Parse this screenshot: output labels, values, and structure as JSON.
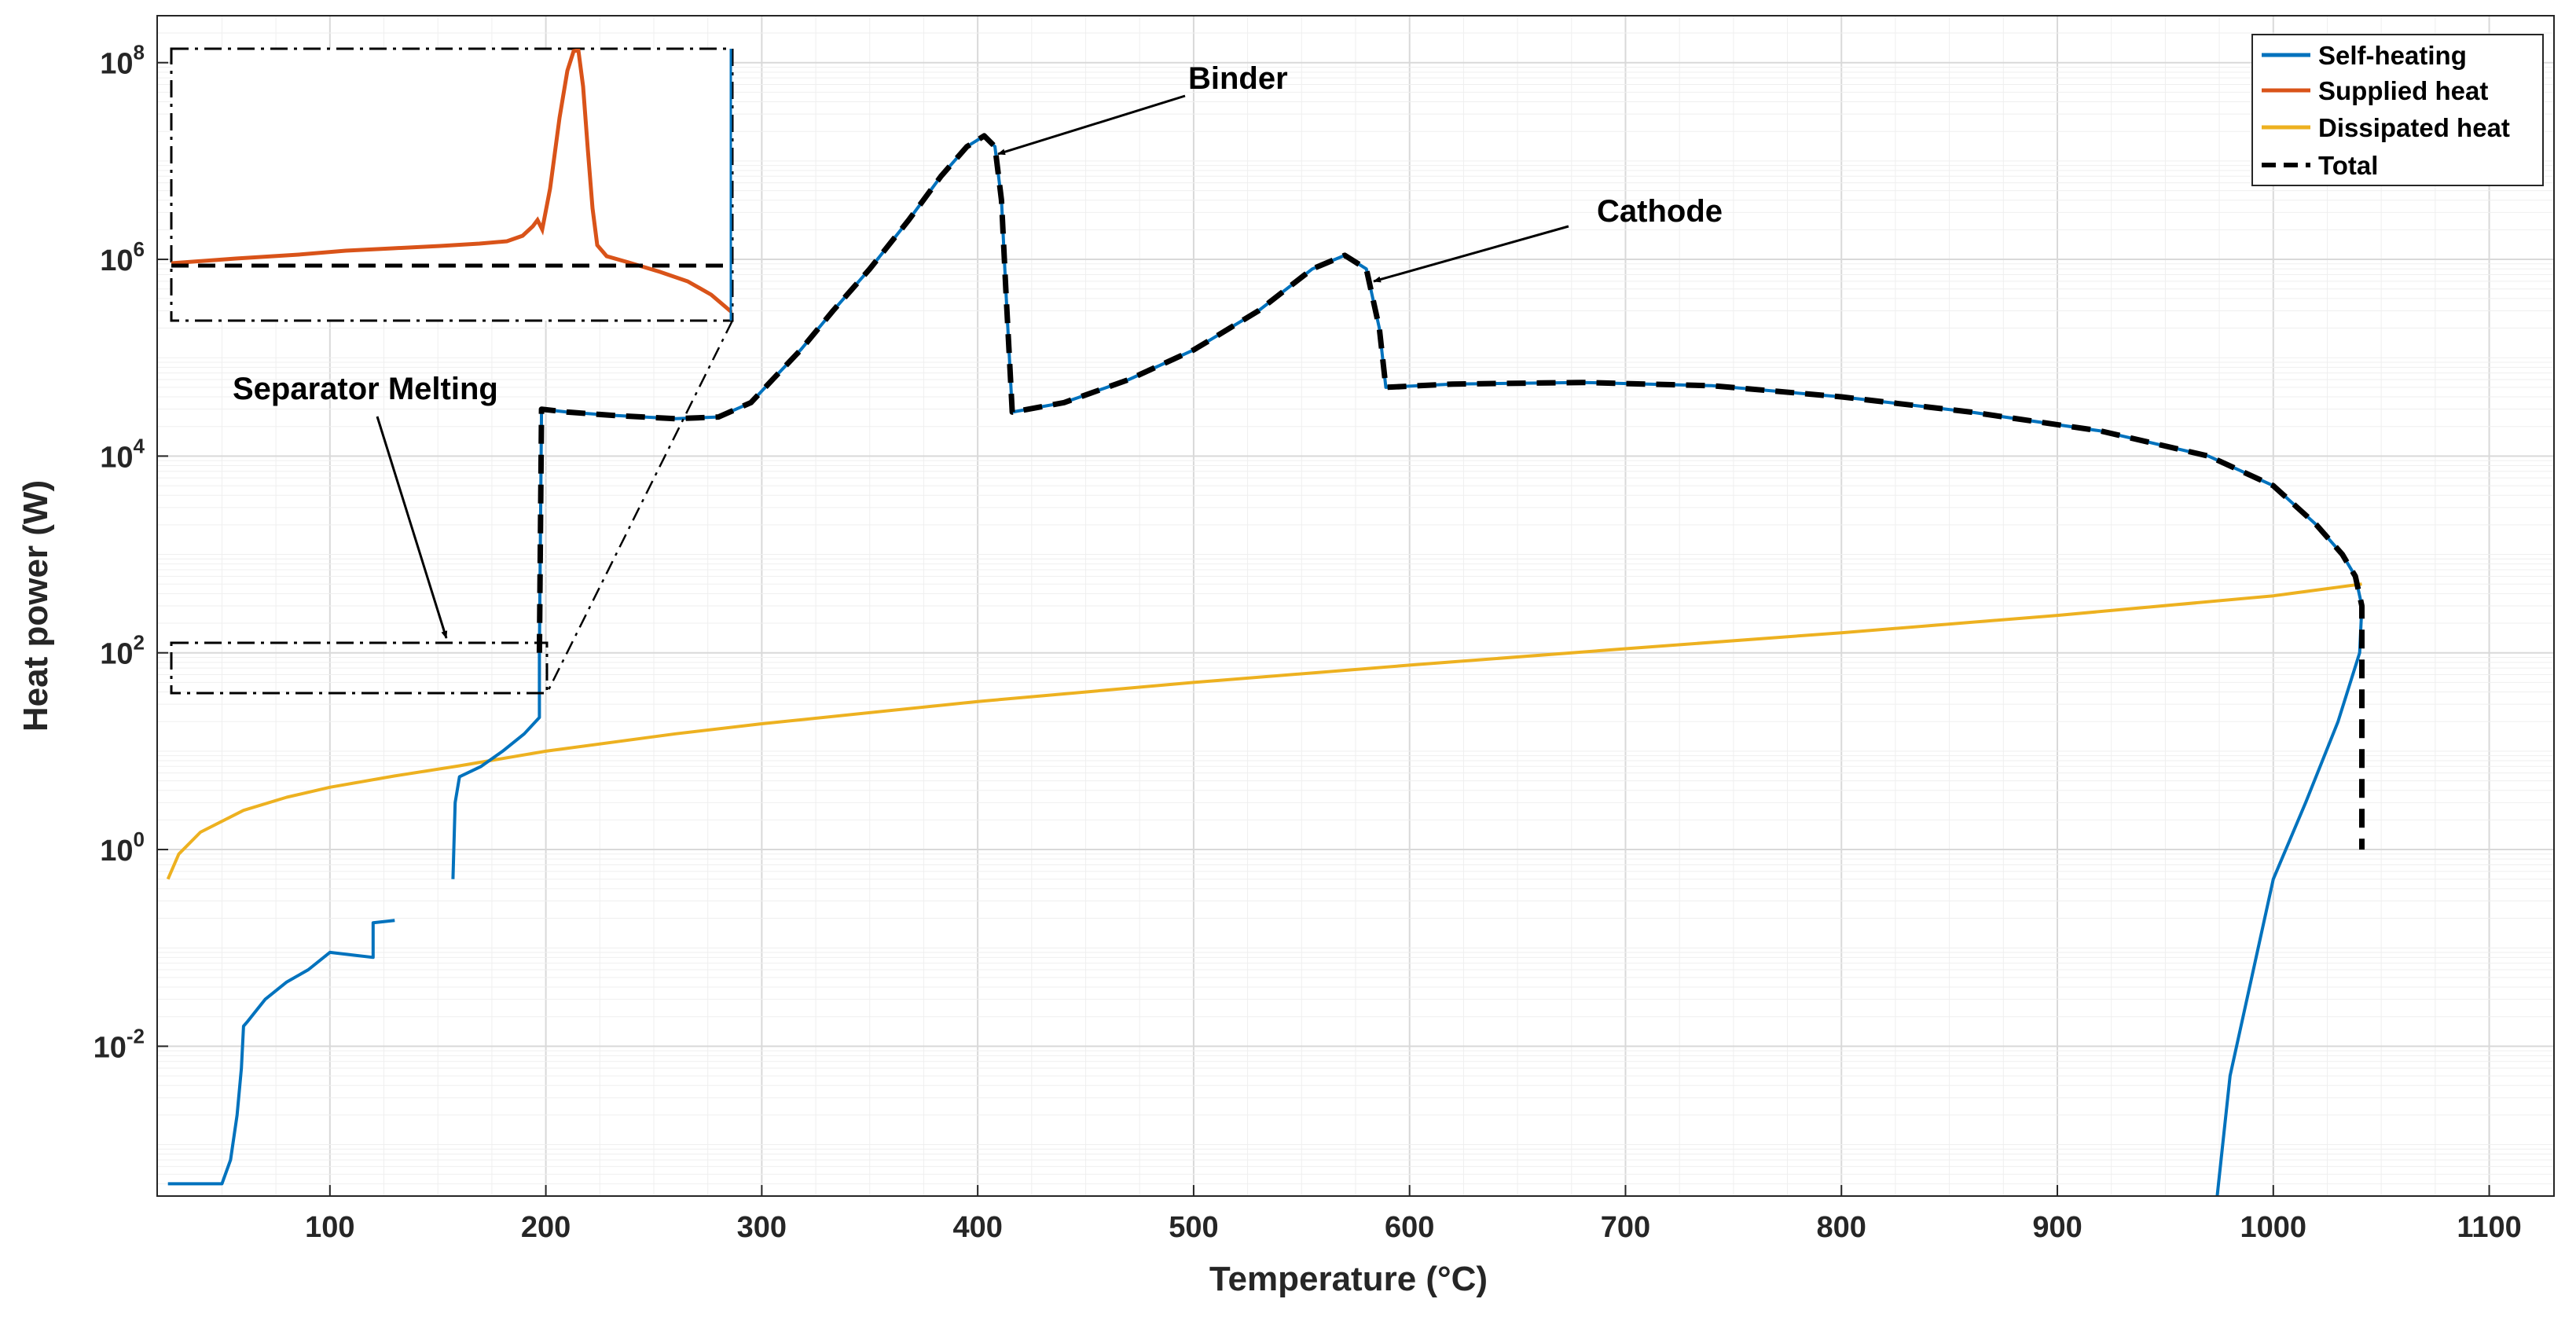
{
  "chart_data": {
    "type": "line",
    "title": "",
    "xlabel": "Temperature (°C)",
    "ylabel": "Heat power (W)",
    "y_scale": "log",
    "xlim": [
      20,
      1130
    ],
    "ylim": [
      0.0003,
      300000000
    ],
    "grid": true,
    "legend_position": "top-right",
    "x_ticks": [
      "100",
      "200",
      "300",
      "400",
      "500",
      "600",
      "700",
      "800",
      "900",
      "1000",
      "1100"
    ],
    "y_ticks": [
      {
        "base": "10",
        "exp": "-2",
        "value": 0.01
      },
      {
        "base": "10",
        "exp": "0",
        "value": 1
      },
      {
        "base": "10",
        "exp": "2",
        "value": 100
      },
      {
        "base": "10",
        "exp": "4",
        "value": 10000
      },
      {
        "base": "10",
        "exp": "6",
        "value": 1000000
      },
      {
        "base": "10",
        "exp": "8",
        "value": 100000000
      }
    ],
    "series": [
      {
        "name": "Self-heating",
        "color": "#0072BD",
        "style": "solid",
        "segments": [
          [
            [
              25,
              0.0004
            ],
            [
              50,
              0.0004
            ],
            [
              54,
              0.0007
            ],
            [
              57,
              0.002
            ],
            [
              59,
              0.006
            ],
            [
              60,
              0.016
            ],
            [
              62,
              0.018
            ],
            [
              70,
              0.03
            ],
            [
              80,
              0.045
            ],
            [
              90,
              0.06
            ],
            [
              100,
              0.09
            ],
            [
              110,
              0.085
            ],
            [
              120,
              0.08
            ],
            [
              120,
              0.18
            ],
            [
              130,
              0.19
            ]
          ],
          [
            [
              157,
              0.5
            ],
            [
              158,
              3
            ],
            [
              160,
              5.5
            ],
            [
              170,
              7
            ],
            [
              180,
              10
            ],
            [
              190,
              15
            ],
            [
              197,
              22
            ],
            [
              197,
              100
            ],
            [
              198,
              30000
            ],
            [
              210,
              28000
            ],
            [
              230,
              26000
            ],
            [
              260,
              24000
            ],
            [
              280,
              25000
            ],
            [
              295,
              35000
            ],
            [
              305,
              60000
            ],
            [
              318,
              120000
            ],
            [
              333,
              300000
            ],
            [
              350,
              800000
            ],
            [
              368,
              2500000
            ],
            [
              383,
              7000000
            ],
            [
              395,
              14000000
            ],
            [
              403,
              18000000
            ],
            [
              408,
              14000000
            ],
            [
              411,
              4000000
            ],
            [
              413,
              500000
            ],
            [
              416,
              28000
            ],
            [
              440,
              35000
            ],
            [
              470,
              60000
            ],
            [
              500,
              120000
            ],
            [
              530,
              300000
            ],
            [
              555,
              800000
            ],
            [
              570,
              1100000
            ],
            [
              580,
              800000
            ],
            [
              586,
              200000
            ],
            [
              589,
              50000
            ],
            [
              620,
              54000
            ],
            [
              680,
              56000
            ],
            [
              740,
              52000
            ],
            [
              800,
              40000
            ],
            [
              860,
              28000
            ],
            [
              920,
              18000
            ],
            [
              970,
              10000
            ],
            [
              1000,
              5000
            ],
            [
              1020,
              2000
            ],
            [
              1032,
              1000
            ],
            [
              1038,
              600
            ],
            [
              1041,
              300
            ],
            [
              1040,
              100
            ],
            [
              1030,
              20
            ],
            [
              1015,
              3
            ],
            [
              1000,
              0.5
            ],
            [
              990,
              0.05
            ],
            [
              980,
              0.005
            ],
            [
              974,
              0.0003
            ]
          ]
        ]
      },
      {
        "name": "Supplied heat",
        "color": "#D95319",
        "style": "solid",
        "segments": []
      },
      {
        "name": "Dissipated heat",
        "color": "#EDB120",
        "style": "solid",
        "segments": [
          [
            [
              25,
              0.5
            ],
            [
              30,
              0.9
            ],
            [
              40,
              1.5
            ],
            [
              60,
              2.5
            ],
            [
              80,
              3.4
            ],
            [
              100,
              4.3
            ],
            [
              130,
              5.6
            ],
            [
              160,
              7.1
            ],
            [
              200,
              10
            ],
            [
              260,
              15
            ],
            [
              300,
              19
            ],
            [
              400,
              32
            ],
            [
              500,
              50
            ],
            [
              600,
              75
            ],
            [
              700,
              110
            ],
            [
              800,
              160
            ],
            [
              900,
              240
            ],
            [
              1000,
              380
            ],
            [
              1041,
              500
            ]
          ]
        ]
      },
      {
        "name": "Total",
        "color": "#000000",
        "style": "dashed",
        "segments": [
          [
            [
              197,
              100
            ],
            [
              198,
              30000
            ],
            [
              210,
              28000
            ],
            [
              230,
              26000
            ],
            [
              260,
              24000
            ],
            [
              280,
              25000
            ],
            [
              295,
              35000
            ],
            [
              305,
              60000
            ],
            [
              318,
              120000
            ],
            [
              333,
              300000
            ],
            [
              350,
              800000
            ],
            [
              368,
              2500000
            ],
            [
              383,
              7000000
            ],
            [
              395,
              14000000
            ],
            [
              403,
              18000000
            ],
            [
              408,
              14000000
            ],
            [
              411,
              4000000
            ],
            [
              413,
              500000
            ],
            [
              416,
              28000
            ],
            [
              440,
              35000
            ],
            [
              470,
              60000
            ],
            [
              500,
              120000
            ],
            [
              530,
              300000
            ],
            [
              555,
              800000
            ],
            [
              570,
              1100000
            ],
            [
              580,
              800000
            ],
            [
              586,
              200000
            ],
            [
              589,
              50000
            ],
            [
              620,
              54000
            ],
            [
              680,
              56000
            ],
            [
              740,
              52000
            ],
            [
              800,
              40000
            ],
            [
              860,
              28000
            ],
            [
              920,
              18000
            ],
            [
              970,
              10000
            ],
            [
              1000,
              5000
            ],
            [
              1020,
              2000
            ],
            [
              1032,
              1000
            ],
            [
              1038,
              600
            ],
            [
              1041,
              300
            ],
            [
              1041,
              1
            ]
          ]
        ]
      }
    ],
    "annotations": [
      {
        "text": "Binder",
        "point": [
          403,
          18000000
        ]
      },
      {
        "text": "Cathode",
        "point": [
          570,
          1100000
        ]
      },
      {
        "text": "Separator Melting",
        "point": [
          153,
          160
        ]
      }
    ]
  }
}
